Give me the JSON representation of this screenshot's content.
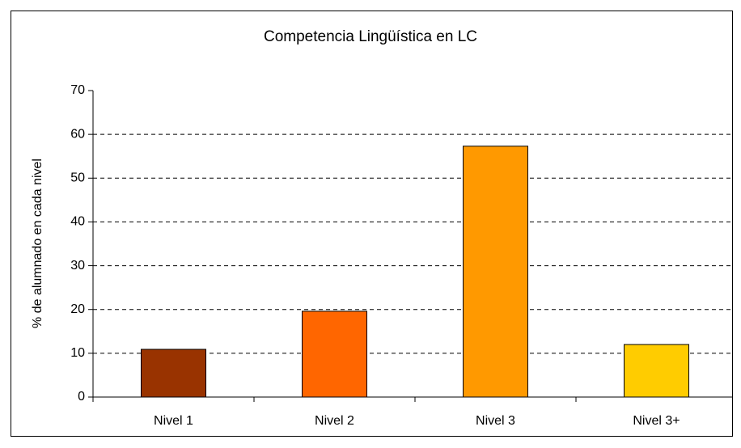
{
  "chart_data": {
    "type": "bar",
    "title": "Competencia Lingüística en LC",
    "y_label": "% de alumnado en cada nivel",
    "categories": [
      "Nivel 1",
      "Nivel 2",
      "Nivel 3",
      "Nivel 3+"
    ],
    "values": [
      10.9,
      19.6,
      57.3,
      12.0
    ],
    "colors": [
      "#993300",
      "#ff6600",
      "#ff9900",
      "#ffcc00"
    ],
    "ylim": [
      0,
      70
    ],
    "yticks": [
      0,
      10,
      20,
      30,
      40,
      50,
      60,
      70
    ],
    "grid": true
  }
}
